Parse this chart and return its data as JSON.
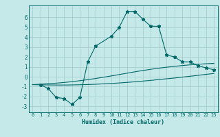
{
  "title": "",
  "xlabel": "Humidex (Indice chaleur)",
  "background_color": "#c5e8e8",
  "grid_color": "#a8d0d0",
  "line_color": "#006868",
  "xlim": [
    -0.5,
    23.5
  ],
  "ylim": [
    -3.6,
    7.2
  ],
  "xticks": [
    0,
    1,
    2,
    3,
    4,
    5,
    6,
    7,
    8,
    9,
    10,
    11,
    12,
    13,
    14,
    15,
    16,
    17,
    18,
    19,
    20,
    21,
    22,
    23
  ],
  "yticks": [
    -3,
    -2,
    -1,
    0,
    1,
    2,
    3,
    4,
    5,
    6
  ],
  "line1_x": [
    1,
    2,
    3,
    4,
    5,
    6,
    7,
    8,
    10,
    11,
    12,
    13,
    14,
    15,
    16,
    17,
    18,
    19,
    20,
    21,
    22,
    23
  ],
  "line1_y": [
    -0.8,
    -1.2,
    -2.1,
    -2.2,
    -2.8,
    -2.1,
    1.5,
    3.1,
    4.1,
    5.0,
    6.6,
    6.6,
    5.8,
    5.1,
    5.1,
    2.2,
    2.0,
    1.5,
    1.5,
    1.1,
    0.9,
    0.7
  ],
  "smooth_x": [
    0,
    1,
    2,
    3,
    4,
    5,
    6,
    7,
    8,
    9,
    10,
    11,
    12,
    13,
    14,
    15,
    16,
    17,
    18,
    19,
    20,
    21,
    22,
    23
  ],
  "smooth1_y": [
    -0.8,
    -0.75,
    -0.7,
    -0.65,
    -0.58,
    -0.5,
    -0.4,
    -0.3,
    -0.18,
    -0.05,
    0.08,
    0.22,
    0.36,
    0.5,
    0.63,
    0.75,
    0.86,
    0.96,
    1.05,
    1.13,
    1.2,
    1.26,
    1.31,
    1.35
  ],
  "smooth2_y": [
    -0.8,
    -0.82,
    -0.83,
    -0.84,
    -0.84,
    -0.83,
    -0.81,
    -0.79,
    -0.76,
    -0.72,
    -0.68,
    -0.63,
    -0.57,
    -0.51,
    -0.44,
    -0.37,
    -0.29,
    -0.21,
    -0.13,
    -0.04,
    0.05,
    0.14,
    0.24,
    0.33
  ]
}
